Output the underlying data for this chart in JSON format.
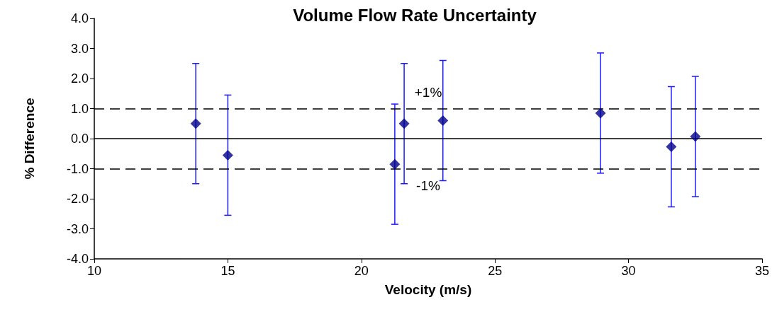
{
  "chart_data": {
    "type": "scatter",
    "title": "Volume Flow Rate Uncertainty",
    "xlabel": "Velocity (m/s)",
    "ylabel": "% Difference",
    "x": [
      13.8,
      15.0,
      21.25,
      21.6,
      23.05,
      28.95,
      31.6,
      32.5
    ],
    "series": [
      {
        "color": "#00008b",
        "values": [
          0.5,
          -0.55,
          -0.85,
          0.5,
          0.6,
          0.85,
          -0.27,
          0.07
        ],
        "errors": [
          2.0,
          2.0,
          2.0,
          2.0,
          2.0,
          2.0,
          2.0,
          2.0
        ]
      }
    ],
    "marker": "diamond",
    "grid": false,
    "xlim": [
      10,
      35
    ],
    "xticks": [
      10,
      15,
      20,
      25,
      30,
      35
    ],
    "ylim": [
      -4,
      4
    ],
    "yticks": [
      {
        "value": -4,
        "label": "-4.0"
      },
      {
        "value": -3,
        "label": "-3.0"
      },
      {
        "value": -2,
        "label": "-2.0"
      },
      {
        "value": -1,
        "label": "-1.0"
      },
      {
        "value": 0,
        "label": "0.0"
      },
      {
        "value": 1,
        "label": "1.0"
      },
      {
        "value": 2,
        "label": "2.0"
      },
      {
        "value": 3,
        "label": "3.0"
      },
      {
        "value": 4,
        "label": "4.0"
      }
    ],
    "ref_lines": [
      {
        "axis": "y",
        "value": 1,
        "label": "+1%",
        "line_style": "dashed",
        "color": "#000000"
      },
      {
        "axis": "y",
        "value": -1,
        "label": "-1%",
        "line_style": "dashed",
        "color": "#000000"
      },
      {
        "axis": "y",
        "value": 0,
        "label": null,
        "line_style": "solid",
        "color": "#000000"
      }
    ]
  }
}
